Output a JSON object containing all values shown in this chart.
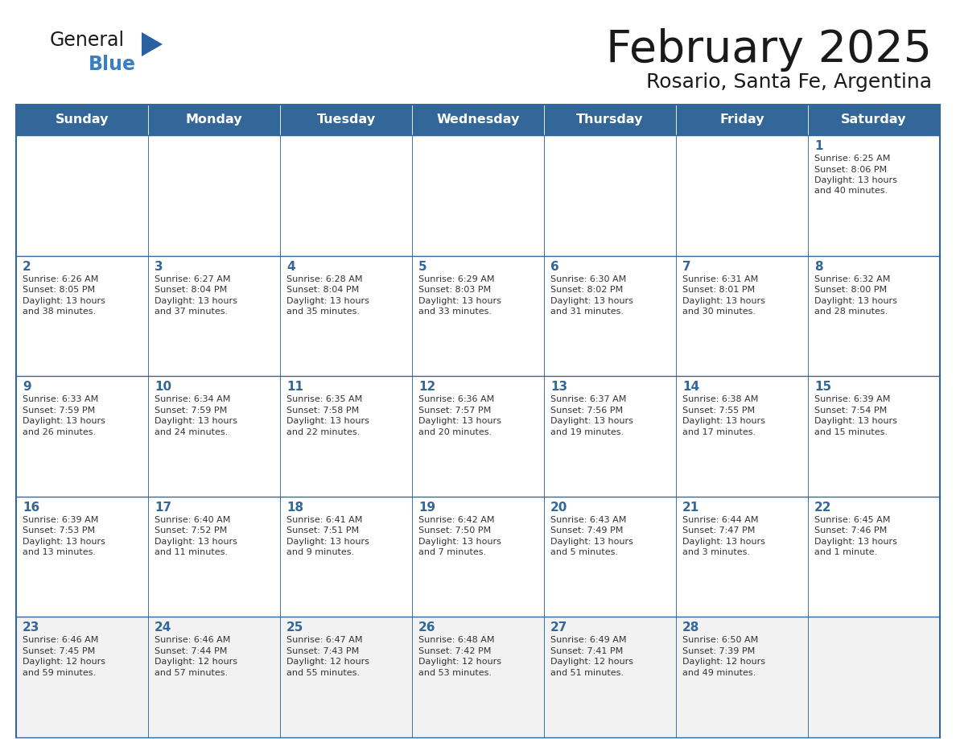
{
  "title": "February 2025",
  "subtitle": "Rosario, Santa Fe, Argentina",
  "header_color": "#336699",
  "header_text_color": "#ffffff",
  "cell_bg_white": "#ffffff",
  "cell_bg_gray": "#f2f2f2",
  "border_color": "#336699",
  "day_headers": [
    "Sunday",
    "Monday",
    "Tuesday",
    "Wednesday",
    "Thursday",
    "Friday",
    "Saturday"
  ],
  "title_color": "#1a1a1a",
  "subtitle_color": "#1a1a1a",
  "day_number_color": "#336699",
  "text_color": "#333333",
  "logo_general_color": "#1a1a1a",
  "logo_blue_color": "#3a7fc1",
  "logo_triangle_color": "#2a5fa0",
  "weeks": [
    [
      {
        "day": "",
        "info": ""
      },
      {
        "day": "",
        "info": ""
      },
      {
        "day": "",
        "info": ""
      },
      {
        "day": "",
        "info": ""
      },
      {
        "day": "",
        "info": ""
      },
      {
        "day": "",
        "info": ""
      },
      {
        "day": "1",
        "info": "Sunrise: 6:25 AM\nSunset: 8:06 PM\nDaylight: 13 hours\nand 40 minutes."
      }
    ],
    [
      {
        "day": "2",
        "info": "Sunrise: 6:26 AM\nSunset: 8:05 PM\nDaylight: 13 hours\nand 38 minutes."
      },
      {
        "day": "3",
        "info": "Sunrise: 6:27 AM\nSunset: 8:04 PM\nDaylight: 13 hours\nand 37 minutes."
      },
      {
        "day": "4",
        "info": "Sunrise: 6:28 AM\nSunset: 8:04 PM\nDaylight: 13 hours\nand 35 minutes."
      },
      {
        "day": "5",
        "info": "Sunrise: 6:29 AM\nSunset: 8:03 PM\nDaylight: 13 hours\nand 33 minutes."
      },
      {
        "day": "6",
        "info": "Sunrise: 6:30 AM\nSunset: 8:02 PM\nDaylight: 13 hours\nand 31 minutes."
      },
      {
        "day": "7",
        "info": "Sunrise: 6:31 AM\nSunset: 8:01 PM\nDaylight: 13 hours\nand 30 minutes."
      },
      {
        "day": "8",
        "info": "Sunrise: 6:32 AM\nSunset: 8:00 PM\nDaylight: 13 hours\nand 28 minutes."
      }
    ],
    [
      {
        "day": "9",
        "info": "Sunrise: 6:33 AM\nSunset: 7:59 PM\nDaylight: 13 hours\nand 26 minutes."
      },
      {
        "day": "10",
        "info": "Sunrise: 6:34 AM\nSunset: 7:59 PM\nDaylight: 13 hours\nand 24 minutes."
      },
      {
        "day": "11",
        "info": "Sunrise: 6:35 AM\nSunset: 7:58 PM\nDaylight: 13 hours\nand 22 minutes."
      },
      {
        "day": "12",
        "info": "Sunrise: 6:36 AM\nSunset: 7:57 PM\nDaylight: 13 hours\nand 20 minutes."
      },
      {
        "day": "13",
        "info": "Sunrise: 6:37 AM\nSunset: 7:56 PM\nDaylight: 13 hours\nand 19 minutes."
      },
      {
        "day": "14",
        "info": "Sunrise: 6:38 AM\nSunset: 7:55 PM\nDaylight: 13 hours\nand 17 minutes."
      },
      {
        "day": "15",
        "info": "Sunrise: 6:39 AM\nSunset: 7:54 PM\nDaylight: 13 hours\nand 15 minutes."
      }
    ],
    [
      {
        "day": "16",
        "info": "Sunrise: 6:39 AM\nSunset: 7:53 PM\nDaylight: 13 hours\nand 13 minutes."
      },
      {
        "day": "17",
        "info": "Sunrise: 6:40 AM\nSunset: 7:52 PM\nDaylight: 13 hours\nand 11 minutes."
      },
      {
        "day": "18",
        "info": "Sunrise: 6:41 AM\nSunset: 7:51 PM\nDaylight: 13 hours\nand 9 minutes."
      },
      {
        "day": "19",
        "info": "Sunrise: 6:42 AM\nSunset: 7:50 PM\nDaylight: 13 hours\nand 7 minutes."
      },
      {
        "day": "20",
        "info": "Sunrise: 6:43 AM\nSunset: 7:49 PM\nDaylight: 13 hours\nand 5 minutes."
      },
      {
        "day": "21",
        "info": "Sunrise: 6:44 AM\nSunset: 7:47 PM\nDaylight: 13 hours\nand 3 minutes."
      },
      {
        "day": "22",
        "info": "Sunrise: 6:45 AM\nSunset: 7:46 PM\nDaylight: 13 hours\nand 1 minute."
      }
    ],
    [
      {
        "day": "23",
        "info": "Sunrise: 6:46 AM\nSunset: 7:45 PM\nDaylight: 12 hours\nand 59 minutes."
      },
      {
        "day": "24",
        "info": "Sunrise: 6:46 AM\nSunset: 7:44 PM\nDaylight: 12 hours\nand 57 minutes."
      },
      {
        "day": "25",
        "info": "Sunrise: 6:47 AM\nSunset: 7:43 PM\nDaylight: 12 hours\nand 55 minutes."
      },
      {
        "day": "26",
        "info": "Sunrise: 6:48 AM\nSunset: 7:42 PM\nDaylight: 12 hours\nand 53 minutes."
      },
      {
        "day": "27",
        "info": "Sunrise: 6:49 AM\nSunset: 7:41 PM\nDaylight: 12 hours\nand 51 minutes."
      },
      {
        "day": "28",
        "info": "Sunrise: 6:50 AM\nSunset: 7:39 PM\nDaylight: 12 hours\nand 49 minutes."
      },
      {
        "day": "",
        "info": ""
      }
    ]
  ]
}
